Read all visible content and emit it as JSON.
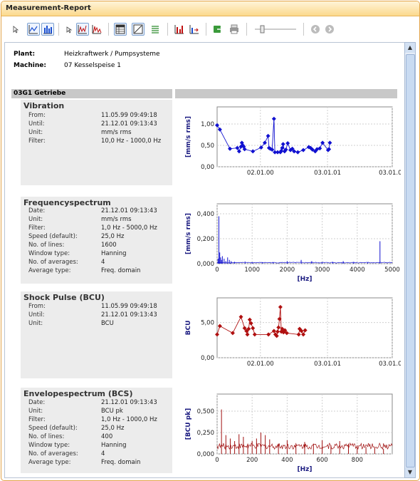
{
  "window": {
    "title": "Measurement-Report"
  },
  "toolbar": {
    "icons": [
      "cursor-icon",
      "line-chart-icon",
      "bar-chart-icon",
      "cursor-small-icon",
      "peaks-icon",
      "spectrum-icon",
      "table-icon",
      "trend-icon",
      "list-icon",
      "bar-stat-icon",
      "bar-arrow-icon",
      "export-icon",
      "print-icon",
      "zoom-slider-icon",
      "back-icon",
      "forward-icon"
    ]
  },
  "header": {
    "plant_label": "Plant:",
    "plant_value": "Heizkraftwerk / Pumpsysteme",
    "machine_label": "Machine:",
    "machine_value": "07 Kesselspeise 1"
  },
  "section": {
    "name": "03G1 Getriebe"
  },
  "panels": [
    {
      "title": "Vibration",
      "fields": [
        {
          "label": "From:",
          "value": "11.05.99 09:49:18"
        },
        {
          "label": "Until:",
          "value": "21.12.01 09:13:43"
        },
        {
          "label": "Unit:",
          "value": "mm/s rms"
        },
        {
          "label": "Filter:",
          "value": "10,0 Hz - 1000,0 Hz"
        }
      ]
    },
    {
      "title": "Frequencyspectrum",
      "fields": [
        {
          "label": "Date:",
          "value": "21.12.01 09:13:43"
        },
        {
          "label": "Unit:",
          "value": "mm/s rms"
        },
        {
          "label": "Filter:",
          "value": "1,0 Hz - 5000,0 Hz"
        },
        {
          "label": "Speed (default):",
          "value": "25,0 Hz"
        },
        {
          "label": "No. of lines:",
          "value": "1600"
        },
        {
          "label": "Window type:",
          "value": "Hanning"
        },
        {
          "label": "No. of averages:",
          "value": "4"
        },
        {
          "label": "Average type:",
          "value": "Freq. domain"
        }
      ]
    },
    {
      "title": "Shock Pulse (BCU)",
      "fields": [
        {
          "label": "From:",
          "value": "11.05.99 09:49:18"
        },
        {
          "label": "Until:",
          "value": "21.12.01 09:13:43"
        },
        {
          "label": "Unit:",
          "value": "BCU"
        }
      ]
    },
    {
      "title": "Envelopespectrum (BCS)",
      "fields": [
        {
          "label": "Date:",
          "value": "21.12.01 09:13:43"
        },
        {
          "label": "Unit:",
          "value": "BCU pk"
        },
        {
          "label": "Filter:",
          "value": "1,0 Hz - 1000,0 Hz"
        },
        {
          "label": "Speed (default):",
          "value": "25,0 Hz"
        },
        {
          "label": "No. of lines:",
          "value": "400"
        },
        {
          "label": "Window type:",
          "value": "Hanning"
        },
        {
          "label": "No. of averages:",
          "value": "4"
        },
        {
          "label": "Average type:",
          "value": "Freq. domain"
        }
      ]
    }
  ],
  "chart_data": [
    {
      "type": "line",
      "ylabel": "[mm/s rms]",
      "ylim": [
        0,
        1.4
      ],
      "yticks": [
        "0,00",
        "0,50",
        "1,00"
      ],
      "yticks_values": [
        0,
        0.5,
        1.0
      ],
      "xticks": [
        "02.01.00",
        "03.01.01",
        "03.01.02"
      ],
      "x_day_range": [
        0,
        955
      ],
      "xticks_days": [
        236,
        602,
        967
      ],
      "color": "#1010d0",
      "grid": true,
      "x_days": [
        0,
        15,
        70,
        110,
        120,
        130,
        135,
        140,
        145,
        150,
        195,
        240,
        260,
        278,
        283,
        290,
        300,
        310,
        315,
        330,
        345,
        350,
        355,
        360,
        368,
        375,
        385,
        400,
        410,
        420,
        440,
        470,
        500,
        510,
        520,
        535,
        545,
        560,
        575,
        605,
        610,
        615
      ],
      "y": [
        0.97,
        0.87,
        0.42,
        0.44,
        0.36,
        0.47,
        0.56,
        0.5,
        0.47,
        0.41,
        0.36,
        0.45,
        0.56,
        0.72,
        0.44,
        0.42,
        0.4,
        1.12,
        0.34,
        0.34,
        0.34,
        0.37,
        0.44,
        0.53,
        0.36,
        0.4,
        0.55,
        0.39,
        0.42,
        0.36,
        0.34,
        0.39,
        0.46,
        0.44,
        0.4,
        0.36,
        0.41,
        0.43,
        0.56,
        0.39,
        0.41,
        0.56
      ]
    },
    {
      "type": "line",
      "ylabel": "[mm/s rms]",
      "xlabel": "[Hz]",
      "xlim": [
        0,
        5000
      ],
      "ylim": [
        0,
        0.48
      ],
      "yticks": [
        "0,000",
        "0,200",
        "0,400"
      ],
      "yticks_values": [
        0,
        0.2,
        0.4
      ],
      "xticks": [
        "0",
        "1000",
        "2000",
        "3000",
        "4000",
        "5000"
      ],
      "xticks_values": [
        0,
        1000,
        2000,
        3000,
        4000,
        5000
      ],
      "color": "#1010d0",
      "grid": true,
      "peaks_x": [
        25,
        50,
        75,
        100,
        125,
        150,
        200,
        250,
        300,
        350,
        400,
        500,
        800,
        1000,
        1300,
        1600,
        2000,
        2400,
        2700,
        3000,
        3300,
        3600,
        3900,
        4300,
        4650
      ],
      "peaks_y": [
        0.04,
        0.38,
        0.09,
        0.05,
        0.03,
        0.06,
        0.04,
        0.02,
        0.05,
        0.03,
        0.02,
        0.015,
        0.015,
        0.01,
        0.012,
        0.01,
        0.02,
        0.03,
        0.02,
        0.01,
        0.015,
        0.02,
        0.015,
        0.01,
        0.18
      ]
    },
    {
      "type": "line",
      "ylabel": "BCU",
      "ylim": [
        0,
        8.5
      ],
      "yticks": [
        "0,00",
        "5,00"
      ],
      "yticks_values": [
        0,
        5
      ],
      "xticks": [
        "02.01.00",
        "03.01.01",
        "03.01.02"
      ],
      "x_day_range": [
        0,
        955
      ],
      "xticks_days": [
        236,
        602,
        967
      ],
      "color": "#b01010",
      "grid": true,
      "x_days": [
        0,
        15,
        85,
        130,
        150,
        160,
        165,
        172,
        178,
        185,
        195,
        205,
        280,
        310,
        318,
        325,
        330,
        335,
        340,
        345,
        350,
        355,
        362,
        370,
        380,
        445,
        450,
        460,
        470,
        480
      ],
      "y": [
        3.3,
        4.5,
        3.5,
        5.8,
        4.2,
        3.8,
        3.3,
        4.1,
        5.4,
        4.9,
        4.2,
        3.3,
        3.3,
        3.8,
        3.3,
        3.1,
        3.7,
        4.3,
        5.5,
        7.2,
        3.7,
        4.1,
        3.6,
        3.9,
        3.5,
        3.3,
        4.1,
        3.8,
        3.3,
        3.9
      ]
    },
    {
      "type": "line",
      "ylabel": "[BCU pk]",
      "xlabel": "[Hz]",
      "xlim": [
        0,
        1000
      ],
      "ylim": [
        0,
        0.7
      ],
      "yticks": [
        "0,000",
        "0,250",
        "0,500"
      ],
      "yticks_values": [
        0,
        0.25,
        0.5
      ],
      "xticks": [
        "0",
        "200",
        "400",
        "600",
        "800"
      ],
      "xticks_values": [
        0,
        200,
        400,
        600,
        800
      ],
      "color": "#a01010",
      "grid": true,
      "peaks_x": [
        25,
        50,
        75,
        100,
        125,
        150,
        175,
        200,
        225,
        250,
        275,
        300,
        350,
        400,
        450,
        500,
        550,
        600,
        650,
        700,
        750,
        800,
        850,
        900,
        950
      ],
      "peaks_y": [
        0.52,
        0.22,
        0.18,
        0.15,
        0.23,
        0.2,
        0.12,
        0.15,
        0.18,
        0.25,
        0.22,
        0.17,
        0.12,
        0.16,
        0.1,
        0.14,
        0.12,
        0.16,
        0.1,
        0.15,
        0.12,
        0.1,
        0.08,
        0.07,
        0.06
      ]
    }
  ]
}
